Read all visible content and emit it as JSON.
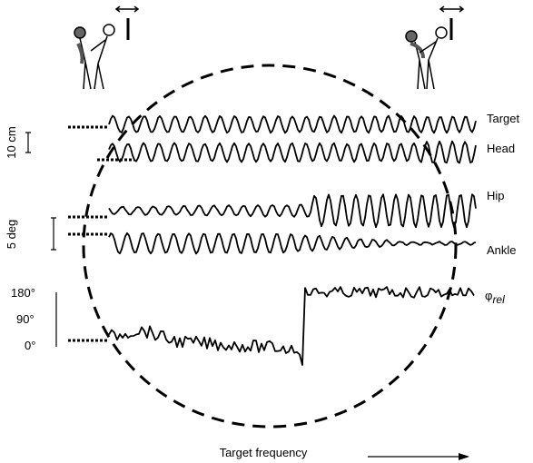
{
  "traces": {
    "target": "Target",
    "head": "Head",
    "hip": "Hip",
    "ankle": "Ankle",
    "phase_symbol": "φ",
    "phase_subscript": "rel"
  },
  "scales": {
    "position": "10 cm",
    "angle": "5 deg",
    "phase_ticks": [
      "180°",
      "90°",
      "0°"
    ]
  },
  "x_axis": "Target frequency"
}
